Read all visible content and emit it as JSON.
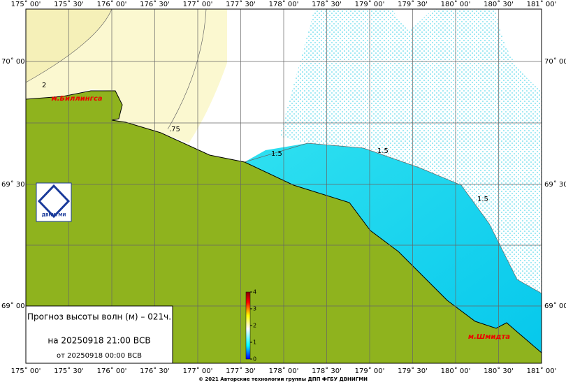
{
  "map": {
    "lon_labels": [
      "175˚ 00'",
      "175˚ 30'",
      "176˚ 00'",
      "176˚ 30'",
      "177˚ 00'",
      "177˚ 30'",
      "178˚ 00'",
      "178˚ 30'",
      "179˚ 00'",
      "179˚ 30'",
      "180˚ 00'",
      "180˚ 30'",
      "181˚ 00'"
    ],
    "lat_labels": [
      "70˚ 00'",
      "69˚ 30'",
      "69˚ 00'"
    ],
    "places": [
      "м.Биллингса",
      "м.Шмидта"
    ],
    "contour_labels": [
      "2",
      ".75",
      "1.5",
      "1.5",
      "1.5"
    ],
    "logo": "ДВНИГМИ",
    "colorbar": {
      "ticks": [
        0,
        1,
        2,
        3,
        4
      ],
      "lim": [
        0,
        4
      ]
    }
  },
  "legend": {
    "title": "Прогноз высоты волн (м) – 021ч.",
    "valid": "на 20250918 21:00 ВСВ",
    "issued": "от 20250918 00:00 ВСВ"
  },
  "footer": "© 2021 Авторские технологии группы ДПП ФГБУ ДВНИГМИ"
}
